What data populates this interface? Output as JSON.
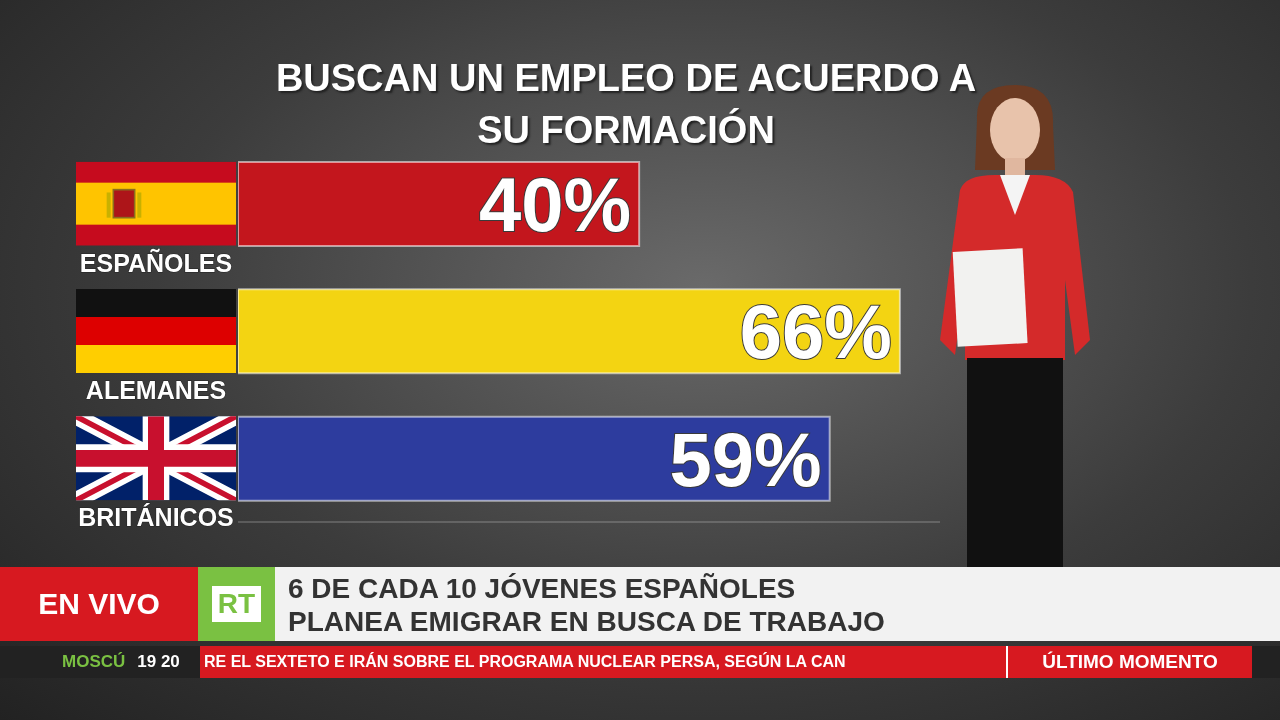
{
  "chart_data": {
    "type": "bar",
    "orientation": "horizontal",
    "title": "BUSCAN UN EMPLEO DE ACUERDO A SU FORMACIÓN",
    "categories": [
      "ESPAÑOLES",
      "ALEMANES",
      "BRITÁNICOS"
    ],
    "values": [
      40,
      66,
      59
    ],
    "value_labels": [
      "40%",
      "66%",
      "59%"
    ],
    "colors": [
      "#c3161d",
      "#f3d412",
      "#2d3c9e"
    ],
    "xlim": [
      0,
      70
    ],
    "data_labels": true,
    "tick_labels": false,
    "grid": false
  },
  "broadcast": {
    "live": "EN VIVO",
    "logo": "RT",
    "headline": [
      "6 DE CADA 10 JÓVENES ESPAÑOLES",
      "PLANEA EMIGRAR EN BUSCA DE TRABAJO"
    ],
    "city": "MOSCÚ",
    "time": "19 20",
    "ticker": "RE EL SEXTETO E IRÁN SOBRE EL PROGRAMA NUCLEAR PERSA, SEGÚN LA CAN",
    "breaking": "ÚLTIMO MOMENTO"
  }
}
